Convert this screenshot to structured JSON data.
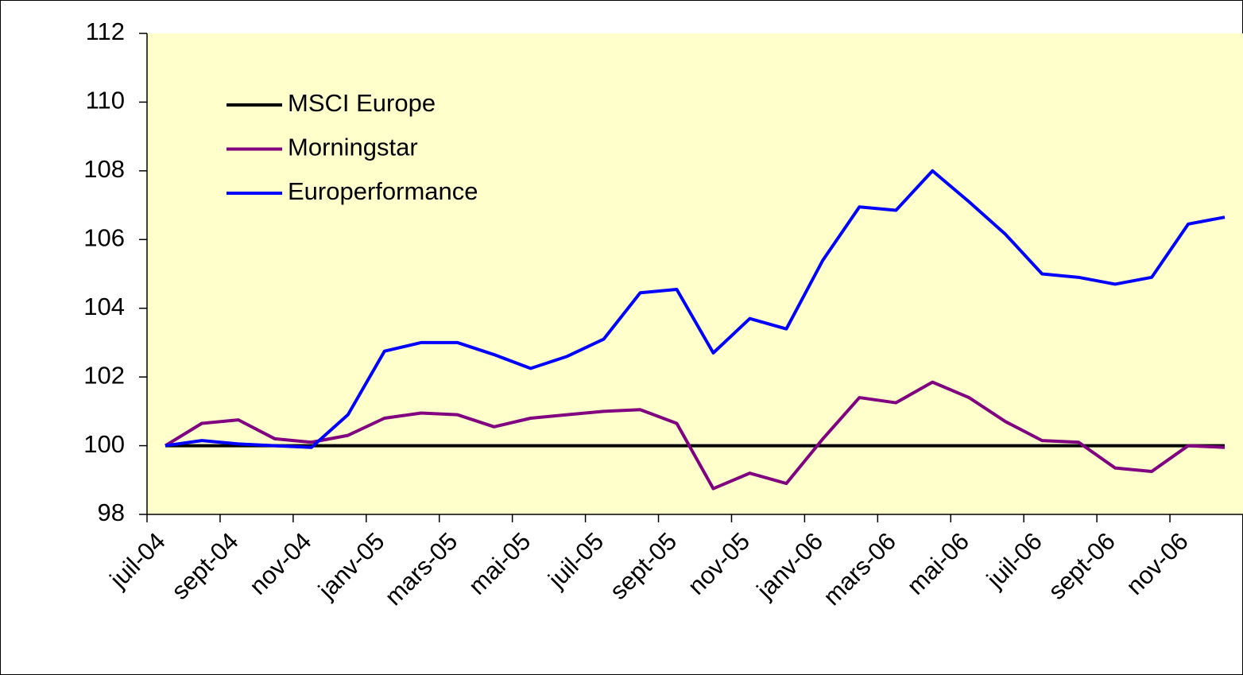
{
  "chart_data": {
    "type": "line",
    "categories": [
      "juil-04",
      null,
      "sept-04",
      null,
      "nov-04",
      null,
      "janv-05",
      null,
      "mars-05",
      null,
      "mai-05",
      null,
      "juil-05",
      null,
      "sept-05",
      null,
      "nov-05",
      null,
      "janv-06",
      null,
      "mars-06",
      null,
      "mai-06",
      null,
      "juil-06",
      null,
      "sept-06",
      null,
      "nov-06",
      null
    ],
    "series": [
      {
        "name": "MSCI Europe",
        "color": "#000000",
        "values": [
          100,
          100,
          100,
          100,
          100,
          100,
          100,
          100,
          100,
          100,
          100,
          100,
          100,
          100,
          100,
          100,
          100,
          100,
          100,
          100,
          100,
          100,
          100,
          100,
          100,
          100,
          100,
          100,
          100,
          100
        ]
      },
      {
        "name": "Morningstar",
        "color": "#800080",
        "values": [
          100,
          100.65,
          100.75,
          100.2,
          100.1,
          100.3,
          100.8,
          100.95,
          100.9,
          100.55,
          100.8,
          100.9,
          101.0,
          101.05,
          100.65,
          98.75,
          99.2,
          98.9,
          100.2,
          101.4,
          101.25,
          101.85,
          101.4,
          100.7,
          100.15,
          100.1,
          99.35,
          99.25,
          100.0,
          99.95
        ]
      },
      {
        "name": "Europerformance",
        "color": "#0000ff",
        "values": [
          100,
          100.15,
          100.05,
          100.0,
          99.95,
          100.9,
          102.75,
          103.0,
          103.0,
          102.65,
          102.25,
          102.6,
          103.1,
          104.45,
          104.55,
          102.7,
          103.7,
          103.4,
          105.4,
          106.95,
          106.85,
          108.0,
          107.1,
          106.15,
          105.0,
          104.9,
          104.7,
          104.9,
          106.45,
          106.65
        ]
      }
    ],
    "ylim": [
      98,
      112
    ],
    "yticks": [
      98,
      100,
      102,
      104,
      106,
      108,
      110,
      112
    ],
    "plot_background": "#ffffcc",
    "legend": "upper left"
  }
}
